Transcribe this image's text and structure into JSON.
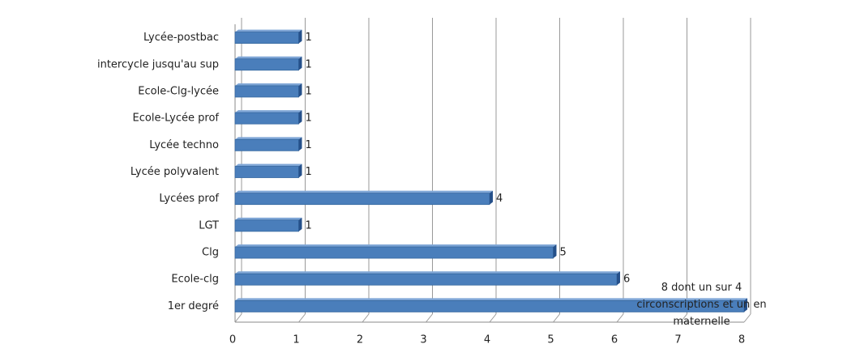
{
  "chart_data": {
    "type": "bar",
    "orientation": "horizontal",
    "categories": [
      "Lycée-postbac",
      "intercycle jusqu'au sup",
      "Ecole-Clg-lycée",
      "Ecole-Lycée prof",
      "Lycée techno",
      "Lycée polyvalent",
      "Lycées prof",
      "LGT",
      "Clg",
      "Ecole-clg",
      "1er degré"
    ],
    "values": [
      1,
      1,
      1,
      1,
      1,
      1,
      4,
      1,
      5,
      6,
      8
    ],
    "value_labels": [
      "1",
      "1",
      "1",
      "1",
      "1",
      "1",
      "4",
      "1",
      "5",
      "6",
      "8 dont un sur 4 circonscriptions et un en maternelle"
    ],
    "color": "#4a7ebb",
    "xlim": [
      0,
      8
    ],
    "xticks": [
      0,
      1,
      2,
      3,
      4,
      5,
      6,
      7,
      8
    ],
    "grid": true
  }
}
